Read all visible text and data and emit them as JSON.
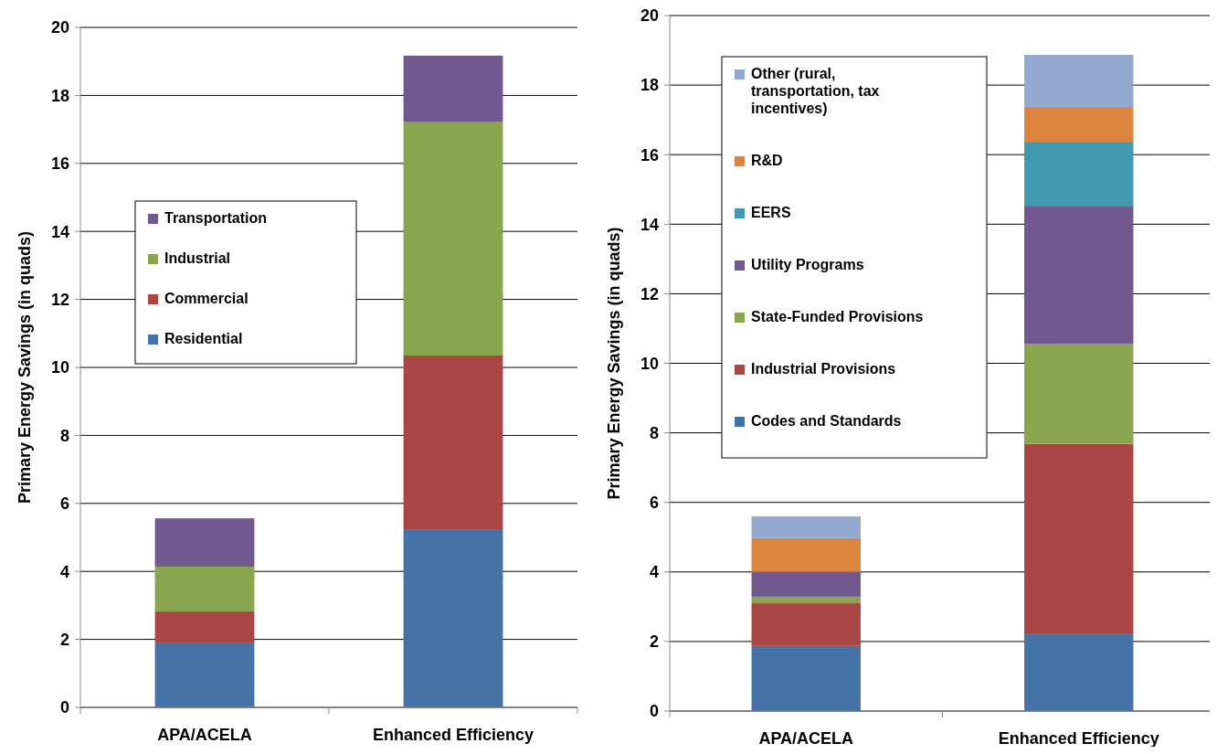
{
  "chart_data": [
    {
      "type": "bar",
      "stacked": true,
      "categories": [
        "APA/ACELA",
        "Enhanced Efficiency"
      ],
      "ylabel": "Primary Energy Savings (in quads)",
      "ylim": [
        0,
        20
      ],
      "yticks": [
        0,
        2,
        4,
        6,
        8,
        10,
        12,
        14,
        16,
        18,
        20
      ],
      "grid": "y",
      "legend": "left",
      "series": [
        {
          "name": "Residential",
          "color": "#4572a7",
          "values": [
            1.91,
            5.24
          ]
        },
        {
          "name": "Commercial",
          "color": "#aa4643",
          "values": [
            0.91,
            5.11
          ]
        },
        {
          "name": "Industrial",
          "color": "#89a54e",
          "values": [
            1.32,
            6.88
          ]
        },
        {
          "name": "Transportation",
          "color": "#71588f",
          "values": [
            1.42,
            1.94
          ]
        }
      ]
    },
    {
      "type": "bar",
      "stacked": true,
      "categories": [
        "APA/ACELA",
        "Enhanced Efficiency"
      ],
      "ylabel": "Primary Energy Savings (in quads)",
      "ylim": [
        0,
        20
      ],
      "yticks": [
        0,
        2,
        4,
        6,
        8,
        10,
        12,
        14,
        16,
        18,
        20
      ],
      "grid": "y",
      "legend": "top left",
      "series": [
        {
          "name": "Codes and Standards",
          "color": "#4572a7",
          "values": [
            1.87,
            2.21
          ]
        },
        {
          "name": "Industrial Provisions",
          "color": "#aa4643",
          "values": [
            1.23,
            5.47
          ]
        },
        {
          "name": "State-Funded Provisions",
          "color": "#89a54e",
          "values": [
            0.19,
            2.87
          ]
        },
        {
          "name": "Utility Programs",
          "color": "#71588f",
          "values": [
            0.71,
            3.98
          ]
        },
        {
          "name": "EERS",
          "color": "#4198af",
          "values": [
            null,
            1.84
          ]
        },
        {
          "name": "R&D",
          "color": "#db843d",
          "values": [
            0.97,
            1.0
          ]
        },
        {
          "name": "Other (rural, transportation, tax incentives)",
          "color": "#93a9cf",
          "values": [
            0.63,
            1.5
          ]
        }
      ]
    }
  ]
}
